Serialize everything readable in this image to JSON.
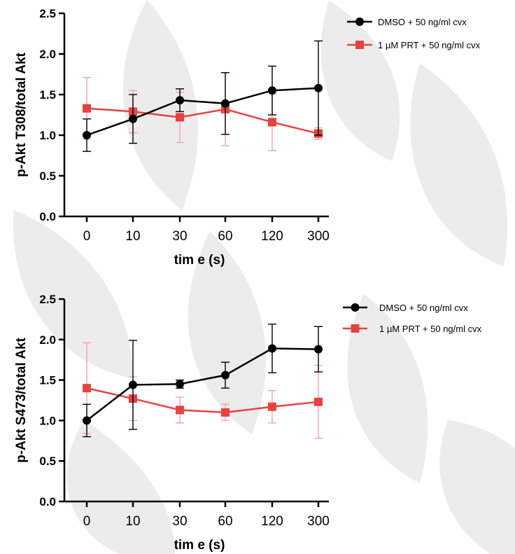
{
  "colors": {
    "dmso": "#000000",
    "prt": "#e8423f",
    "prt_error": "#f2a6a4",
    "watermark": "#ececec"
  },
  "chart_data": [
    {
      "type": "line",
      "categories": [
        "0",
        "10",
        "30",
        "60",
        "120",
        "300"
      ],
      "xlabel": "tim e  (s)",
      "ylabel": "p-Akt T308/total Akt",
      "ylim": [
        0,
        2.5
      ],
      "yticks": [
        "0.0",
        "0.5",
        "1.0",
        "1.5",
        "2.0",
        "2.5"
      ],
      "grid": false,
      "legend_position": "top-right",
      "series": [
        {
          "name": "DMSO + 50 ng/ml cvx",
          "marker": "circle",
          "values": [
            1.0,
            1.2,
            1.43,
            1.39,
            1.55,
            1.58
          ],
          "error": [
            0.2,
            0.3,
            0.14,
            0.38,
            0.3,
            0.58
          ]
        },
        {
          "name": "1 µM PRT + 50 ng/ml cvx",
          "marker": "square",
          "values": [
            1.33,
            1.29,
            1.22,
            1.32,
            1.16,
            1.02
          ],
          "error": [
            0.38,
            0.26,
            0.31,
            0.45,
            0.35,
            0.07
          ]
        }
      ]
    },
    {
      "type": "line",
      "categories": [
        "0",
        "10",
        "30",
        "60",
        "120",
        "300"
      ],
      "xlabel": "tim e  (s)",
      "ylabel": "p-Akt S473/total Akt",
      "ylim": [
        0,
        2.5
      ],
      "yticks": [
        "0.0",
        "0.5",
        "1.0",
        "1.5",
        "2.0",
        "2.5"
      ],
      "grid": false,
      "legend_position": "top-right",
      "series": [
        {
          "name": "DMSO + 50 ng/ml cvx",
          "marker": "circle",
          "values": [
            1.0,
            1.44,
            1.45,
            1.56,
            1.89,
            1.88
          ],
          "error": [
            0.2,
            0.55,
            0.05,
            0.16,
            0.3,
            0.28
          ]
        },
        {
          "name": "1 µM PRT + 50 ng/ml cvx",
          "marker": "square",
          "values": [
            1.4,
            1.27,
            1.13,
            1.1,
            1.17,
            1.23
          ],
          "error": [
            0.56,
            0.27,
            0.16,
            0.1,
            0.2,
            0.45
          ]
        }
      ]
    }
  ]
}
